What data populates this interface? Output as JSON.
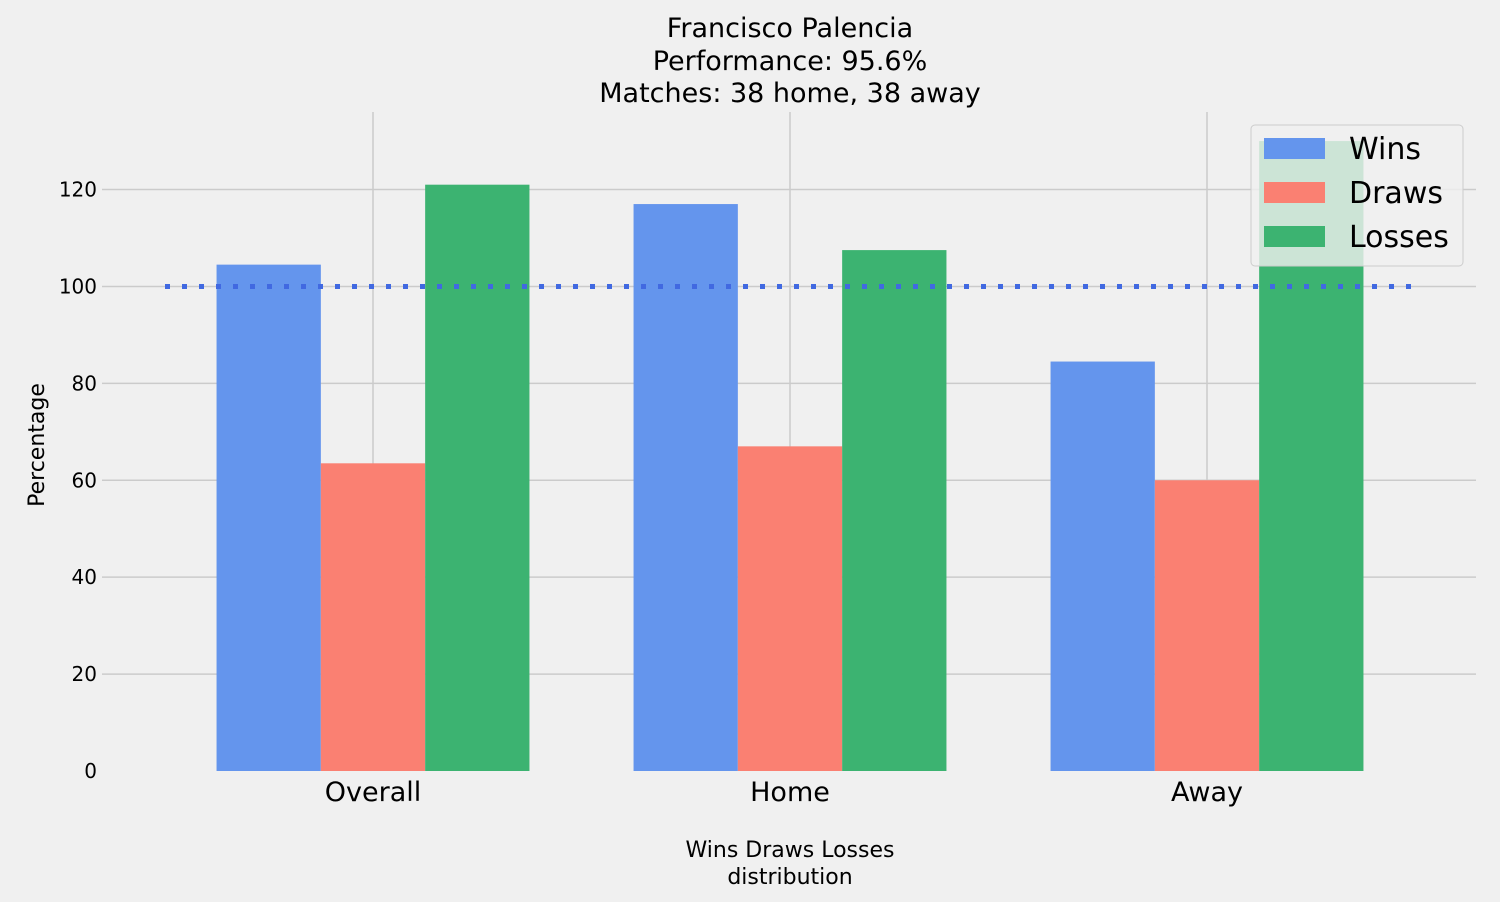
{
  "chart_data": {
    "type": "bar",
    "title_lines": [
      "Francisco Palencia",
      "Performance: 95.6%",
      "Matches: 38 home, 38 away"
    ],
    "xlabel_lines": [
      "Wins Draws Losses",
      "distribution"
    ],
    "ylabel": "Percentage",
    "categories": [
      "Overall",
      "Home",
      "Away"
    ],
    "series": [
      {
        "name": "Wins",
        "color": "#6495ed",
        "values": [
          104.5,
          117,
          84.5
        ]
      },
      {
        "name": "Draws",
        "color": "#fa8072",
        "values": [
          63.5,
          67,
          60
        ]
      },
      {
        "name": "Losses",
        "color": "#3cb371",
        "values": [
          121,
          107.5,
          130
        ]
      }
    ],
    "ylim": [
      0,
      136
    ],
    "yticks": [
      0,
      20,
      40,
      60,
      80,
      100,
      120
    ],
    "reference_line": {
      "value": 100,
      "style": "dotted",
      "color": "#4169e1"
    },
    "grid": true,
    "legend_position": "top-right"
  }
}
